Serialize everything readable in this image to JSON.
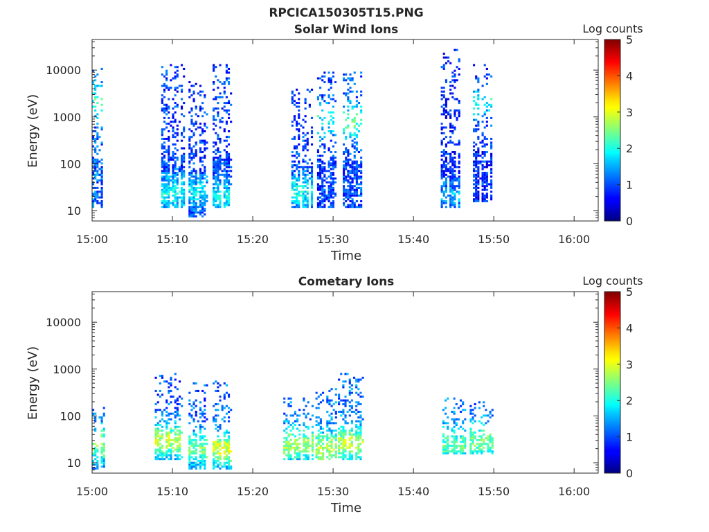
{
  "figure_title": "RPCICA150305T15.PNG",
  "chart_data": [
    {
      "type": "heatmap",
      "title": "Solar Wind Ions",
      "xlabel": "Time",
      "ylabel": "Energy (eV)",
      "y_scale": "log",
      "ylim": [
        6,
        45000
      ],
      "xlim": [
        "15:00",
        "16:03"
      ],
      "x_ticks": [
        "15:00",
        "15:10",
        "15:20",
        "15:30",
        "15:40",
        "15:50",
        "16:00"
      ],
      "y_ticks": [
        "10",
        "100",
        "1000",
        "10000"
      ],
      "colorbar": {
        "label": "Log counts",
        "range": [
          0,
          5
        ],
        "ticks": [
          "0",
          "1",
          "2",
          "3",
          "4",
          "5"
        ],
        "colormap": "jet"
      },
      "bursts": [
        {
          "start_min": 0.0,
          "end_min": 1.2,
          "low_eV": 12,
          "high_eV": 11000,
          "intensity": 1.6,
          "peak_eV": 2200,
          "peak_intensity": 2.2
        },
        {
          "start_min": 8.6,
          "end_min": 11.4,
          "low_eV": 12,
          "high_eV": 13000,
          "intensity": 1.3,
          "peak_eV": 25,
          "peak_intensity": 1.9
        },
        {
          "start_min": 12.0,
          "end_min": 14.2,
          "low_eV": 7,
          "high_eV": 6000,
          "intensity": 1.2,
          "peak_eV": 25,
          "peak_intensity": 1.7
        },
        {
          "start_min": 15.0,
          "end_min": 17.2,
          "low_eV": 12,
          "high_eV": 14000,
          "intensity": 1.3,
          "peak_eV": 20,
          "peak_intensity": 1.8
        },
        {
          "start_min": 24.8,
          "end_min": 27.4,
          "low_eV": 12,
          "high_eV": 4500,
          "intensity": 1.3,
          "peak_eV": 25,
          "peak_intensity": 1.9
        },
        {
          "start_min": 28.0,
          "end_min": 30.4,
          "low_eV": 12,
          "high_eV": 9000,
          "intensity": 1.3,
          "peak_eV": 900,
          "peak_intensity": 1.9
        },
        {
          "start_min": 31.2,
          "end_min": 33.6,
          "low_eV": 12,
          "high_eV": 9000,
          "intensity": 1.4,
          "peak_eV": 800,
          "peak_intensity": 2.3
        },
        {
          "start_min": 43.4,
          "end_min": 45.6,
          "low_eV": 12,
          "high_eV": 27000,
          "intensity": 1.1,
          "peak_eV": 20,
          "peak_intensity": 1.4
        },
        {
          "start_min": 47.4,
          "end_min": 49.8,
          "low_eV": 15,
          "high_eV": 14000,
          "intensity": 1.2,
          "peak_eV": 2200,
          "peak_intensity": 1.9
        }
      ]
    },
    {
      "type": "heatmap",
      "title": "Cometary Ions",
      "xlabel": "Time",
      "ylabel": "Energy (eV)",
      "y_scale": "log",
      "ylim": [
        6,
        45000
      ],
      "xlim": [
        "15:00",
        "16:03"
      ],
      "x_ticks": [
        "15:00",
        "15:10",
        "15:20",
        "15:30",
        "15:40",
        "15:50",
        "16:00"
      ],
      "y_ticks": [
        "10",
        "100",
        "1000",
        "10000"
      ],
      "colorbar": {
        "label": "Log counts",
        "range": [
          0,
          5
        ],
        "ticks": [
          "0",
          "1",
          "2",
          "3",
          "4",
          "5"
        ],
        "colormap": "jet"
      },
      "bursts": [
        {
          "start_min": 0.0,
          "end_min": 1.4,
          "low_eV": 7,
          "high_eV": 160,
          "intensity": 1.8,
          "peak_eV": 25,
          "peak_intensity": 2.5
        },
        {
          "start_min": 7.8,
          "end_min": 11.2,
          "low_eV": 12,
          "high_eV": 800,
          "intensity": 1.5,
          "peak_eV": 30,
          "peak_intensity": 2.8
        },
        {
          "start_min": 12.0,
          "end_min": 14.4,
          "low_eV": 7,
          "high_eV": 500,
          "intensity": 1.5,
          "peak_eV": 20,
          "peak_intensity": 2.4
        },
        {
          "start_min": 15.0,
          "end_min": 17.2,
          "low_eV": 7,
          "high_eV": 600,
          "intensity": 1.6,
          "peak_eV": 20,
          "peak_intensity": 2.9
        },
        {
          "start_min": 23.8,
          "end_min": 27.4,
          "low_eV": 12,
          "high_eV": 250,
          "intensity": 1.7,
          "peak_eV": 25,
          "peak_intensity": 2.6
        },
        {
          "start_min": 27.8,
          "end_min": 30.4,
          "low_eV": 12,
          "high_eV": 400,
          "intensity": 1.8,
          "peak_eV": 20,
          "peak_intensity": 2.7
        },
        {
          "start_min": 30.6,
          "end_min": 33.8,
          "low_eV": 12,
          "high_eV": 800,
          "intensity": 1.7,
          "peak_eV": 25,
          "peak_intensity": 2.8
        },
        {
          "start_min": 43.6,
          "end_min": 46.4,
          "low_eV": 15,
          "high_eV": 250,
          "intensity": 1.7,
          "peak_eV": 25,
          "peak_intensity": 2.3
        },
        {
          "start_min": 47.0,
          "end_min": 49.8,
          "low_eV": 15,
          "high_eV": 200,
          "intensity": 1.7,
          "peak_eV": 30,
          "peak_intensity": 2.4
        }
      ]
    }
  ]
}
